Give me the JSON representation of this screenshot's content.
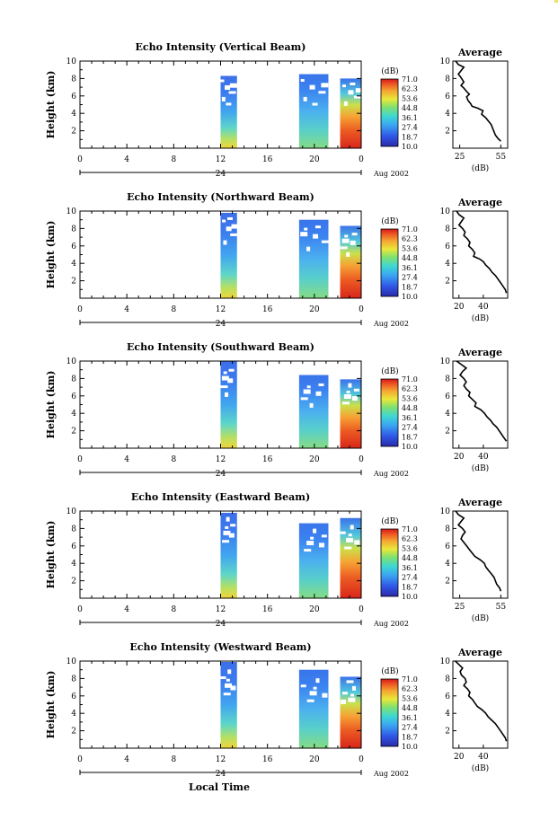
{
  "x_axis_label": "Local Time",
  "date_label": "Aug 2002",
  "day_label": "24",
  "x_ticks": [
    "0",
    "4",
    "8",
    "12",
    "16",
    "20",
    "0"
  ],
  "y_ticks": [
    "2",
    "4",
    "6",
    "8",
    "10"
  ],
  "ylabel": "Height (km)",
  "colorbar": {
    "unit": "(dB)",
    "labels": [
      "71.0",
      "62.3",
      "53.6",
      "44.8",
      "36.1",
      "27.4",
      "18.7",
      "10.0"
    ]
  },
  "chart_data": [
    {
      "type": "heatmap",
      "title": "Echo Intensity (Vertical Beam)",
      "xlabel": "Local Time",
      "ylabel": "Height (km)",
      "xlim": [
        0,
        24
      ],
      "ylim": [
        0,
        10
      ],
      "x_tick_labels": [
        "0",
        "4",
        "8",
        "12",
        "16",
        "20",
        "0"
      ],
      "y_tick_labels": [
        "2",
        "4",
        "6",
        "8",
        "10"
      ],
      "colorbar_unit": "(dB)",
      "colorbar_range": [
        10.0,
        71.0
      ],
      "data_segments": [
        {
          "x_start": 12.0,
          "x_end": 13.4,
          "top_km": 8.3
        },
        {
          "x_start": 18.7,
          "x_end": 21.2,
          "top_km": 8.5
        },
        {
          "x_start": 22.2,
          "x_end": 24.0,
          "top_km": 8.0
        }
      ],
      "average_profile": {
        "title": "Average",
        "xlabel": "(dB)",
        "x_tick_labels": [
          "25",
          "55"
        ],
        "xlim": [
          20,
          60
        ],
        "ylim": [
          0,
          10
        ],
        "points": [
          [
            22,
            10
          ],
          [
            24,
            9.6
          ],
          [
            28,
            9.3
          ],
          [
            26,
            8.9
          ],
          [
            24,
            8.5
          ],
          [
            26,
            8.1
          ],
          [
            28,
            7.6
          ],
          [
            26,
            7.2
          ],
          [
            28,
            6.9
          ],
          [
            30,
            6.5
          ],
          [
            32,
            6.2
          ],
          [
            30,
            5.9
          ],
          [
            31,
            5.5
          ],
          [
            33,
            5.1
          ],
          [
            34,
            4.8
          ],
          [
            38,
            4.6
          ],
          [
            42,
            4.3
          ],
          [
            41,
            3.9
          ],
          [
            44,
            3.5
          ],
          [
            46,
            3.1
          ],
          [
            48,
            2.7
          ],
          [
            49,
            2.3
          ],
          [
            50,
            1.9
          ],
          [
            51,
            1.5
          ],
          [
            53,
            1.1
          ],
          [
            55,
            0.8
          ]
        ]
      }
    },
    {
      "type": "heatmap",
      "title": "Echo Intensity (Northward Beam)",
      "xlabel": "Local Time",
      "ylabel": "Height (km)",
      "xlim": [
        0,
        24
      ],
      "ylim": [
        0,
        10
      ],
      "x_tick_labels": [
        "0",
        "4",
        "8",
        "12",
        "16",
        "20",
        "0"
      ],
      "y_tick_labels": [
        "2",
        "4",
        "6",
        "8",
        "10"
      ],
      "colorbar_unit": "(dB)",
      "colorbar_range": [
        10.0,
        71.0
      ],
      "data_segments": [
        {
          "x_start": 12.0,
          "x_end": 13.4,
          "top_km": 9.8
        },
        {
          "x_start": 18.7,
          "x_end": 21.2,
          "top_km": 9.0
        },
        {
          "x_start": 22.2,
          "x_end": 24.0,
          "top_km": 8.3
        }
      ],
      "average_profile": {
        "title": "Average",
        "xlabel": "(dB)",
        "x_tick_labels": [
          "20",
          "40"
        ],
        "xlim": [
          15,
          60
        ],
        "ylim": [
          0,
          10
        ],
        "points": [
          [
            18,
            10
          ],
          [
            20,
            9.6
          ],
          [
            24,
            9.2
          ],
          [
            22,
            8.8
          ],
          [
            20,
            8.4
          ],
          [
            23,
            8.0
          ],
          [
            25,
            7.6
          ],
          [
            24,
            7.2
          ],
          [
            27,
            6.8
          ],
          [
            29,
            6.4
          ],
          [
            28,
            6.0
          ],
          [
            31,
            5.6
          ],
          [
            33,
            5.2
          ],
          [
            32,
            4.8
          ],
          [
            37,
            4.5
          ],
          [
            40,
            4.2
          ],
          [
            42,
            3.8
          ],
          [
            45,
            3.4
          ],
          [
            47,
            3.0
          ],
          [
            50,
            2.6
          ],
          [
            52,
            2.2
          ],
          [
            54,
            1.8
          ],
          [
            56,
            1.4
          ],
          [
            58,
            1.0
          ],
          [
            59,
            0.6
          ]
        ]
      }
    },
    {
      "type": "heatmap",
      "title": "Echo Intensity (Southward Beam)",
      "xlabel": "Local Time",
      "ylabel": "Height (km)",
      "xlim": [
        0,
        24
      ],
      "ylim": [
        0,
        10
      ],
      "x_tick_labels": [
        "0",
        "4",
        "8",
        "12",
        "16",
        "20",
        "0"
      ],
      "y_tick_labels": [
        "2",
        "4",
        "6",
        "8",
        "10"
      ],
      "colorbar_unit": "(dB)",
      "colorbar_range": [
        10.0,
        71.0
      ],
      "data_segments": [
        {
          "x_start": 12.0,
          "x_end": 13.4,
          "top_km": 10.0
        },
        {
          "x_start": 18.7,
          "x_end": 21.2,
          "top_km": 8.4
        },
        {
          "x_start": 22.2,
          "x_end": 24.0,
          "top_km": 7.9
        }
      ],
      "average_profile": {
        "title": "Average",
        "xlabel": "(dB)",
        "x_tick_labels": [
          "20",
          "40"
        ],
        "xlim": [
          15,
          60
        ],
        "ylim": [
          0,
          10
        ],
        "points": [
          [
            18,
            10
          ],
          [
            22,
            9.6
          ],
          [
            26,
            9.2
          ],
          [
            23,
            8.8
          ],
          [
            21,
            8.4
          ],
          [
            24,
            8.0
          ],
          [
            26,
            7.6
          ],
          [
            24,
            7.2
          ],
          [
            26,
            6.8
          ],
          [
            29,
            6.4
          ],
          [
            28,
            6.0
          ],
          [
            31,
            5.6
          ],
          [
            34,
            5.2
          ],
          [
            33,
            4.8
          ],
          [
            38,
            4.4
          ],
          [
            41,
            4.0
          ],
          [
            43,
            3.6
          ],
          [
            46,
            3.2
          ],
          [
            48,
            2.8
          ],
          [
            51,
            2.4
          ],
          [
            53,
            2.0
          ],
          [
            55,
            1.6
          ],
          [
            57,
            1.2
          ],
          [
            59,
            0.8
          ]
        ]
      }
    },
    {
      "type": "heatmap",
      "title": "Echo Intensity (Eastward Beam)",
      "xlabel": "Local Time",
      "ylabel": "Height (km)",
      "xlim": [
        0,
        24
      ],
      "ylim": [
        0,
        10
      ],
      "x_tick_labels": [
        "0",
        "4",
        "8",
        "12",
        "16",
        "20",
        "0"
      ],
      "y_tick_labels": [
        "2",
        "4",
        "6",
        "8",
        "10"
      ],
      "colorbar_unit": "(dB)",
      "colorbar_range": [
        10.0,
        71.0
      ],
      "data_segments": [
        {
          "x_start": 12.0,
          "x_end": 13.4,
          "top_km": 9.8
        },
        {
          "x_start": 18.7,
          "x_end": 21.2,
          "top_km": 8.6
        },
        {
          "x_start": 22.2,
          "x_end": 24.0,
          "top_km": 9.2
        }
      ],
      "average_profile": {
        "title": "Average",
        "xlabel": "(dB)",
        "x_tick_labels": [
          "25",
          "55"
        ],
        "xlim": [
          20,
          60
        ],
        "ylim": [
          0,
          10
        ],
        "points": [
          [
            22,
            10
          ],
          [
            24,
            9.6
          ],
          [
            28,
            9.2
          ],
          [
            26,
            8.8
          ],
          [
            24,
            8.4
          ],
          [
            27,
            8.0
          ],
          [
            29,
            7.6
          ],
          [
            27,
            7.2
          ],
          [
            26,
            6.8
          ],
          [
            28,
            6.4
          ],
          [
            30,
            6.0
          ],
          [
            32,
            5.6
          ],
          [
            34,
            5.2
          ],
          [
            36,
            4.8
          ],
          [
            40,
            4.4
          ],
          [
            43,
            4.0
          ],
          [
            44,
            3.6
          ],
          [
            46,
            3.2
          ],
          [
            48,
            2.8
          ],
          [
            50,
            2.4
          ],
          [
            51,
            2.0
          ],
          [
            52,
            1.6
          ],
          [
            54,
            1.2
          ],
          [
            55,
            0.8
          ]
        ]
      }
    },
    {
      "type": "heatmap",
      "title": "Echo Intensity (Westward Beam)",
      "xlabel": "Local Time",
      "ylabel": "Height (km)",
      "xlim": [
        0,
        24
      ],
      "ylim": [
        0,
        10
      ],
      "x_tick_labels": [
        "0",
        "4",
        "8",
        "12",
        "16",
        "20",
        "0"
      ],
      "y_tick_labels": [
        "2",
        "4",
        "6",
        "8",
        "10"
      ],
      "colorbar_unit": "(dB)",
      "colorbar_range": [
        10.0,
        71.0
      ],
      "data_segments": [
        {
          "x_start": 12.0,
          "x_end": 13.4,
          "top_km": 9.9
        },
        {
          "x_start": 18.7,
          "x_end": 21.2,
          "top_km": 9.0
        },
        {
          "x_start": 22.2,
          "x_end": 24.0,
          "top_km": 8.2
        }
      ],
      "average_profile": {
        "title": "Average",
        "xlabel": "(dB)",
        "x_tick_labels": [
          "20",
          "40"
        ],
        "xlim": [
          15,
          60
        ],
        "ylim": [
          0,
          10
        ],
        "points": [
          [
            17,
            10
          ],
          [
            20,
            9.6
          ],
          [
            23,
            9.2
          ],
          [
            21,
            8.8
          ],
          [
            22,
            8.4
          ],
          [
            25,
            8.0
          ],
          [
            26,
            7.6
          ],
          [
            24,
            7.2
          ],
          [
            27,
            6.8
          ],
          [
            29,
            6.4
          ],
          [
            28,
            6.0
          ],
          [
            31,
            5.6
          ],
          [
            33,
            5.2
          ],
          [
            35,
            4.8
          ],
          [
            39,
            4.4
          ],
          [
            42,
            4.0
          ],
          [
            44,
            3.6
          ],
          [
            47,
            3.2
          ],
          [
            50,
            2.8
          ],
          [
            52,
            2.4
          ],
          [
            54,
            2.0
          ],
          [
            56,
            1.6
          ],
          [
            58,
            1.2
          ],
          [
            59,
            0.8
          ]
        ]
      }
    }
  ]
}
